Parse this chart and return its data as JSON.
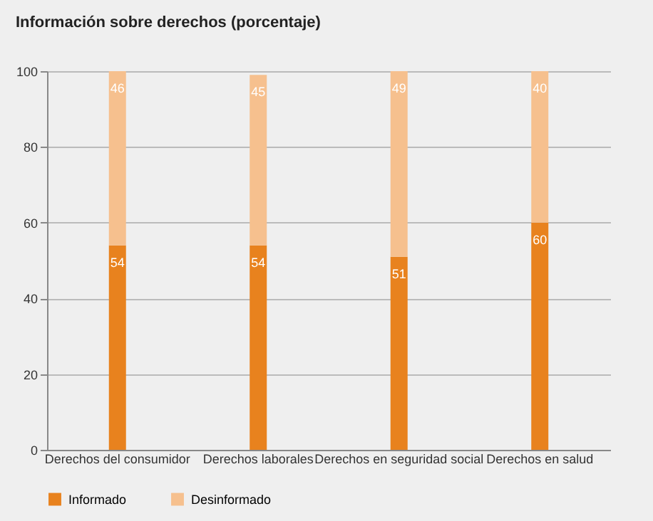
{
  "chart_data": {
    "type": "bar",
    "title": "Información sobre derechos (porcentaje)",
    "categories": [
      "Derechos del consumidor",
      "Derechos laborales",
      "Derechos en seguridad social",
      "Derechos en salud"
    ],
    "series": [
      {
        "name": "Informado",
        "color": "#e8821e",
        "values": [
          54,
          54,
          51,
          60
        ]
      },
      {
        "name": "Desinformado",
        "color": "#f6c08e",
        "values": [
          46,
          45,
          49,
          40
        ]
      }
    ],
    "stacked": true,
    "data_labels": true,
    "ylim": [
      0,
      100
    ],
    "yticks": [
      0,
      20,
      40,
      60,
      80,
      100
    ],
    "grid": "y",
    "legend": "bottom"
  }
}
